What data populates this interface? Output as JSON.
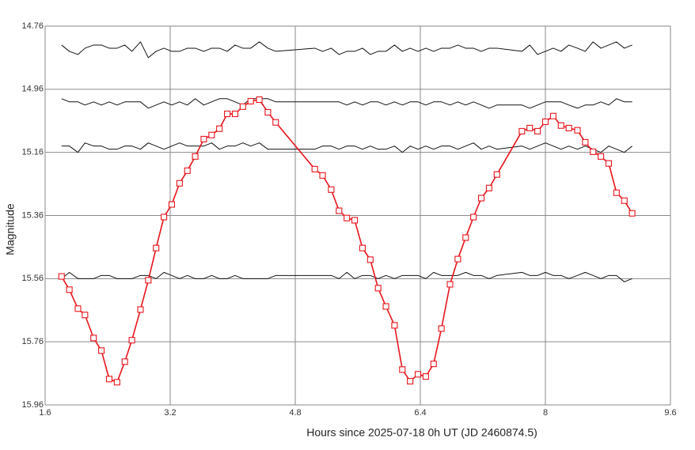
{
  "chart_data": {
    "type": "line",
    "x_label": "Hours since 2025-07-18 0h UT (JD 2460874.5)",
    "y_label": "Magnitude",
    "xlim": [
      1.6,
      9.6
    ],
    "xticks": [
      1.6,
      3.2,
      4.8,
      6.4,
      8,
      9.6
    ],
    "ylim": [
      15.96,
      14.76
    ],
    "yticks": [
      14.76,
      14.96,
      15.16,
      15.36,
      15.56,
      15.76,
      15.96
    ],
    "grid": true,
    "x": [
      1.81,
      1.91,
      2.02,
      2.11,
      2.22,
      2.32,
      2.42,
      2.52,
      2.62,
      2.71,
      2.82,
      2.92,
      3.02,
      3.12,
      3.22,
      3.32,
      3.42,
      3.52,
      3.63,
      3.73,
      3.83,
      3.93,
      4.03,
      4.13,
      4.23,
      4.34,
      4.45,
      4.55,
      5.05,
      5.15,
      5.26,
      5.36,
      5.46,
      5.56,
      5.66,
      5.76,
      5.86,
      5.96,
      6.07,
      6.17,
      6.27,
      6.37,
      6.47,
      6.57,
      6.67,
      6.78,
      6.88,
      6.98,
      7.08,
      7.18,
      7.28,
      7.38,
      7.7,
      7.8,
      7.9,
      8.0,
      8.1,
      8.2,
      8.3,
      8.41,
      8.51,
      8.61,
      8.71,
      8.81,
      8.91,
      9.01,
      9.11
    ],
    "series": [
      {
        "color": "#e8141b",
        "marker": "square",
        "values": [
          15.553,
          15.595,
          15.655,
          15.675,
          15.748,
          15.788,
          15.878,
          15.888,
          15.823,
          15.755,
          15.658,
          15.565,
          15.463,
          15.365,
          15.325,
          15.258,
          15.218,
          15.173,
          15.118,
          15.105,
          15.085,
          15.038,
          15.038,
          15.015,
          14.998,
          14.993,
          15.033,
          15.065,
          15.213,
          15.233,
          15.278,
          15.345,
          15.368,
          15.375,
          15.463,
          15.5,
          15.59,
          15.648,
          15.708,
          15.848,
          15.885,
          15.863,
          15.87,
          15.83,
          15.718,
          15.578,
          15.498,
          15.43,
          15.365,
          15.305,
          15.273,
          15.23,
          15.093,
          15.083,
          15.093,
          15.063,
          15.045,
          15.075,
          15.083,
          15.09,
          15.128,
          15.158,
          15.173,
          15.195,
          15.288,
          15.313,
          15.353
        ]
      },
      {
        "color": "#111111",
        "values": [
          14.82,
          14.84,
          14.85,
          14.83,
          14.82,
          14.82,
          14.83,
          14.83,
          14.82,
          14.84,
          14.81,
          14.86,
          14.84,
          14.83,
          14.84,
          14.84,
          14.83,
          14.83,
          14.84,
          14.83,
          14.83,
          14.84,
          14.82,
          14.83,
          14.83,
          14.81,
          14.83,
          14.84,
          14.83,
          14.84,
          14.83,
          14.85,
          14.84,
          14.84,
          14.83,
          14.85,
          14.84,
          14.84,
          14.82,
          14.84,
          14.83,
          14.84,
          14.83,
          14.84,
          14.83,
          14.83,
          14.82,
          14.83,
          14.83,
          14.84,
          14.83,
          14.83,
          14.84,
          14.82,
          14.85,
          14.84,
          14.83,
          14.84,
          14.82,
          14.83,
          14.84,
          14.81,
          14.83,
          14.82,
          14.81,
          14.83,
          14.82
        ]
      },
      {
        "color": "#111111",
        "values": [
          14.99,
          15.0,
          15.0,
          15.01,
          15.0,
          15.01,
          15.0,
          15.01,
          15.0,
          15.0,
          15.0,
          15.02,
          15.01,
          15.0,
          15.01,
          15.0,
          15.01,
          14.99,
          15.01,
          15.0,
          14.99,
          14.99,
          15.0,
          15.01,
          14.99,
          14.99,
          14.99,
          15.0,
          15.0,
          15.0,
          15.0,
          15.0,
          15.01,
          15.0,
          15.01,
          15.0,
          15.0,
          15.01,
          15.0,
          15.01,
          15.0,
          15.0,
          15.01,
          15.0,
          15.0,
          15.01,
          15.0,
          15.01,
          15.0,
          15.01,
          15.02,
          15.01,
          15.01,
          15.02,
          15.01,
          15.0,
          15.0,
          15.0,
          15.01,
          15.02,
          15.01,
          15.01,
          15.0,
          15.01,
          14.99,
          15.0,
          15.0
        ]
      },
      {
        "color": "#111111",
        "values": [
          15.14,
          15.14,
          15.16,
          15.13,
          15.14,
          15.14,
          15.15,
          15.15,
          15.14,
          15.14,
          15.15,
          15.13,
          15.14,
          15.15,
          15.14,
          15.13,
          15.14,
          15.14,
          15.14,
          15.13,
          15.15,
          15.14,
          15.14,
          15.13,
          15.14,
          15.13,
          15.15,
          15.15,
          15.15,
          15.14,
          15.14,
          15.15,
          15.14,
          15.14,
          15.15,
          15.14,
          15.15,
          15.15,
          15.14,
          15.16,
          15.14,
          15.15,
          15.14,
          15.15,
          15.14,
          15.14,
          15.15,
          15.14,
          15.13,
          15.15,
          15.14,
          15.15,
          15.14,
          15.15,
          15.14,
          15.13,
          15.14,
          15.15,
          15.14,
          15.15,
          15.14,
          15.15,
          15.16,
          15.14,
          15.15,
          15.16,
          15.14
        ]
      },
      {
        "color": "#111111",
        "values": [
          15.56,
          15.54,
          15.56,
          15.56,
          15.56,
          15.55,
          15.55,
          15.56,
          15.56,
          15.56,
          15.55,
          15.55,
          15.56,
          15.54,
          15.55,
          15.56,
          15.55,
          15.56,
          15.56,
          15.55,
          15.56,
          15.56,
          15.55,
          15.56,
          15.56,
          15.56,
          15.56,
          15.55,
          15.55,
          15.55,
          15.55,
          15.56,
          15.54,
          15.56,
          15.55,
          15.55,
          15.56,
          15.55,
          15.56,
          15.55,
          15.55,
          15.55,
          15.56,
          15.54,
          15.55,
          15.55,
          15.55,
          15.54,
          15.55,
          15.55,
          15.56,
          15.55,
          15.54,
          15.55,
          15.55,
          15.54,
          15.55,
          15.55,
          15.56,
          15.55,
          15.54,
          15.55,
          15.56,
          15.55,
          15.55,
          15.57,
          15.56
        ]
      }
    ]
  }
}
